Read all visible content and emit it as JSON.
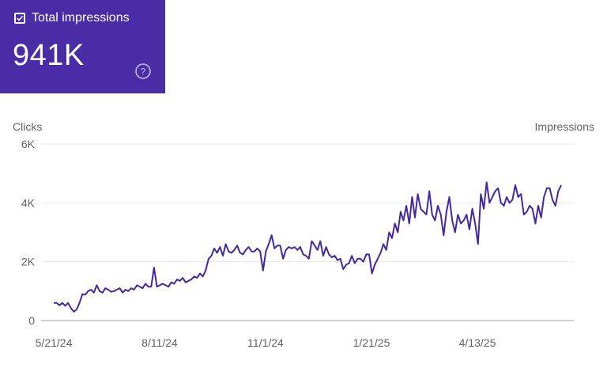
{
  "metric_card": {
    "label": "Total impressions",
    "value": "941K",
    "checked": true,
    "background": "#4a2ca6"
  },
  "chart_data": {
    "type": "line",
    "title": "",
    "xlabel": "",
    "ylabel": "Clicks",
    "y2label": "Impressions",
    "ylim": [
      0,
      6000
    ],
    "y_ticks": [
      0,
      2000,
      4000,
      6000
    ],
    "y_tick_labels": [
      "0",
      "2K",
      "4K",
      "6K"
    ],
    "x_tick_labels": [
      "5/21/24",
      "8/11/24",
      "11/1/24",
      "1/21/25",
      "4/13/25"
    ],
    "grid": true,
    "series": [
      {
        "name": "Total impressions",
        "color": "#4527a0",
        "x_start": "2024-05-21",
        "x_end": "2025-07-03",
        "values": [
          600,
          600,
          520,
          600,
          500,
          600,
          420,
          300,
          380,
          600,
          900,
          880,
          1000,
          1050,
          950,
          1200,
          1000,
          950,
          1100,
          1050,
          980,
          1000,
          1050,
          1100,
          950,
          1050,
          1000,
          1100,
          1050,
          1200,
          1150,
          1100,
          1250,
          1150,
          1150,
          1800,
          1150,
          1200,
          1250,
          1200,
          1150,
          1300,
          1250,
          1400,
          1350,
          1450,
          1300,
          1350,
          1400,
          1500,
          1450,
          1600,
          1500,
          1700,
          2100,
          2200,
          2450,
          2300,
          2500,
          2200,
          2600,
          2350,
          2300,
          2400,
          2550,
          2300,
          2250,
          2400,
          2500,
          2350,
          2350,
          2450,
          2350,
          1700,
          2350,
          2600,
          2900,
          2450,
          2550,
          2550,
          2100,
          2400,
          2500,
          2450,
          2500,
          2400,
          2500,
          2250,
          2200,
          2100,
          2700,
          2550,
          2400,
          2700,
          2200,
          2500,
          2250,
          2150,
          2200,
          2050,
          2100,
          1750,
          1900,
          1950,
          2200,
          1950,
          2100,
          2100,
          2000,
          2250,
          2250,
          1600,
          1900,
          2100,
          2300,
          2600,
          2400,
          3000,
          2800,
          3300,
          3000,
          3700,
          3400,
          3900,
          3300,
          4200,
          3500,
          4300,
          3800,
          3700,
          3600,
          4400,
          3600,
          3400,
          3900,
          3600,
          2900,
          3700,
          4200,
          3400,
          3000,
          3600,
          3300,
          3400,
          3600,
          3100,
          3800,
          3300,
          2600,
          4300,
          3800,
          4700,
          4000,
          4200,
          4400,
          4500,
          4000,
          3900,
          4200,
          4000,
          4100,
          4600,
          4200,
          4300,
          3600,
          3700,
          3900,
          3800,
          3300,
          3900,
          3500,
          4200,
          4500,
          4500,
          4100,
          3900,
          4400,
          4600
        ]
      }
    ]
  }
}
